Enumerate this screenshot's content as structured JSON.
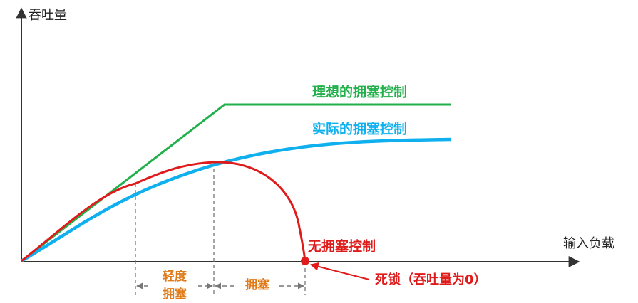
{
  "axes": {
    "y_label": "吞吐量",
    "x_label": "输入负载"
  },
  "curves": {
    "ideal": "理想的拥塞控制",
    "actual": "实际的拥塞控制",
    "none": "无拥塞控制"
  },
  "annotations": {
    "deadlock": "死锁（吞吐量为0）"
  },
  "regions": {
    "light": [
      "轻度",
      "拥塞"
    ],
    "congestion": "拥塞"
  }
}
